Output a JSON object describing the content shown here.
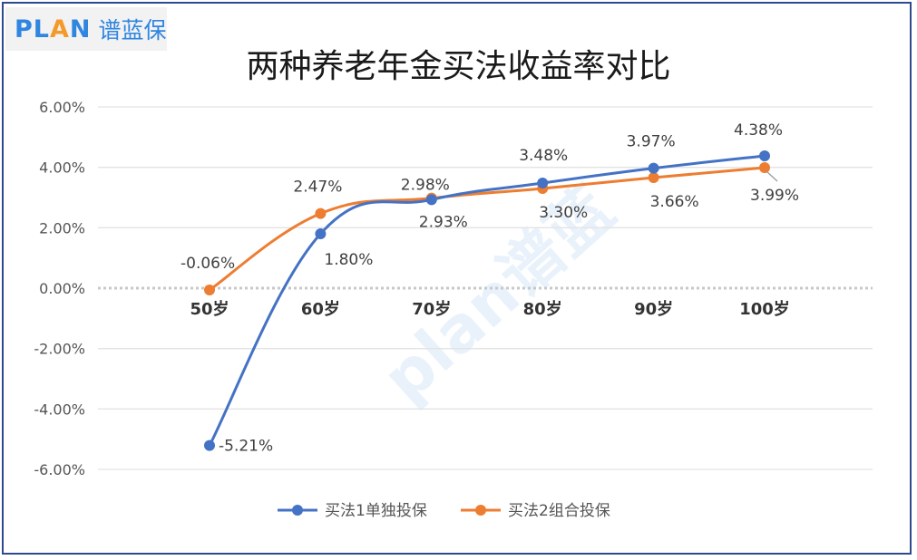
{
  "logo": {
    "latin_pre": "PL",
    "latin_a": "A",
    "latin_post": "N",
    "brand": "谱蓝保"
  },
  "watermark": "plan谱蓝",
  "chart_data": {
    "type": "line",
    "title": "两种养老年金买法收益率对比",
    "categories": [
      "50岁",
      "60岁",
      "70岁",
      "80岁",
      "90岁",
      "100岁"
    ],
    "series": [
      {
        "name": "买法1单独投保",
        "color": "#4472c4",
        "values": [
          -5.21,
          1.8,
          2.93,
          3.48,
          3.97,
          4.38
        ],
        "labels": [
          "-5.21%",
          "1.80%",
          "2.93%",
          "3.48%",
          "3.97%",
          "4.38%"
        ]
      },
      {
        "name": "买法2组合投保",
        "color": "#ed7d31",
        "values": [
          -0.06,
          2.47,
          2.98,
          3.3,
          3.66,
          3.99
        ],
        "labels": [
          "-0.06%",
          "2.47%",
          "2.98%",
          "3.30%",
          "3.66%",
          "3.99%"
        ]
      }
    ],
    "yticks": [
      "6.00%",
      "4.00%",
      "2.00%",
      "0.00%",
      "-2.00%",
      "-4.00%",
      "-6.00%"
    ],
    "ylim": [
      -6,
      6
    ],
    "grid": true,
    "legend": "bottom",
    "smooth": true
  }
}
